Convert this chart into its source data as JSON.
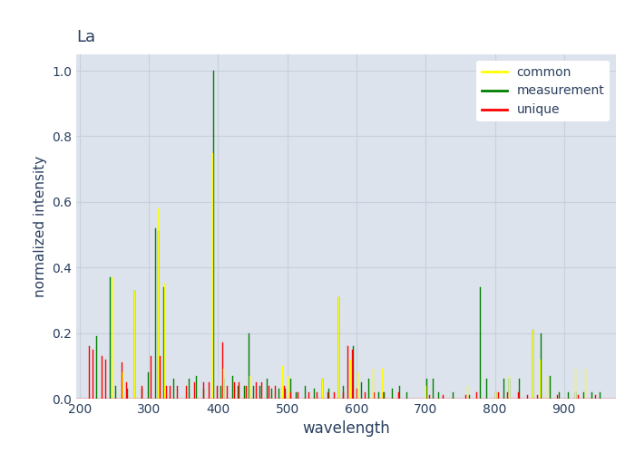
{
  "title": "La",
  "xlabel": "wavelength",
  "ylabel": "normalized intensity",
  "xlim": [
    195,
    975
  ],
  "ylim": [
    0,
    1.05
  ],
  "plot_bg_color": "#dce3ed",
  "fig_color": "#ffffff",
  "legend_bg": "#ffffff",
  "common_color": "yellow",
  "measurement_color": "green",
  "unique_color": "red",
  "text_color": "#2a3f5f",
  "grid_color": "#c8d0dc",
  "common": [
    [
      247,
      0.37
    ],
    [
      262,
      0.08
    ],
    [
      279,
      0.33
    ],
    [
      313,
      0.58
    ],
    [
      322,
      0.35
    ],
    [
      392,
      0.75
    ],
    [
      407,
      0.09
    ],
    [
      445,
      0.07
    ],
    [
      492,
      0.1
    ],
    [
      500,
      0.07
    ],
    [
      550,
      0.06
    ],
    [
      574,
      0.31
    ],
    [
      591,
      0.12
    ],
    [
      602,
      0.08
    ],
    [
      624,
      0.09
    ],
    [
      637,
      0.09
    ],
    [
      700,
      0.04
    ],
    [
      760,
      0.04
    ],
    [
      800,
      0.02
    ],
    [
      820,
      0.07
    ],
    [
      855,
      0.21
    ],
    [
      865,
      0.12
    ],
    [
      876,
      0.07
    ],
    [
      916,
      0.09
    ],
    [
      930,
      0.09
    ]
  ],
  "measurement": [
    [
      224,
      0.19
    ],
    [
      244,
      0.37
    ],
    [
      252,
      0.04
    ],
    [
      268,
      0.03
    ],
    [
      279,
      0.33
    ],
    [
      289,
      0.03
    ],
    [
      299,
      0.08
    ],
    [
      309,
      0.52
    ],
    [
      313,
      0.51
    ],
    [
      321,
      0.34
    ],
    [
      335,
      0.06
    ],
    [
      358,
      0.06
    ],
    [
      368,
      0.07
    ],
    [
      378,
      0.03
    ],
    [
      393,
      1.0
    ],
    [
      404,
      0.04
    ],
    [
      408,
      0.06
    ],
    [
      420,
      0.07
    ],
    [
      428,
      0.04
    ],
    [
      437,
      0.04
    ],
    [
      444,
      0.2
    ],
    [
      450,
      0.04
    ],
    [
      460,
      0.04
    ],
    [
      470,
      0.06
    ],
    [
      477,
      0.03
    ],
    [
      487,
      0.03
    ],
    [
      497,
      0.03
    ],
    [
      504,
      0.06
    ],
    [
      512,
      0.02
    ],
    [
      525,
      0.04
    ],
    [
      538,
      0.03
    ],
    [
      550,
      0.06
    ],
    [
      560,
      0.03
    ],
    [
      574,
      0.31
    ],
    [
      581,
      0.04
    ],
    [
      595,
      0.16
    ],
    [
      606,
      0.05
    ],
    [
      617,
      0.06
    ],
    [
      631,
      0.02
    ],
    [
      640,
      0.02
    ],
    [
      651,
      0.03
    ],
    [
      662,
      0.04
    ],
    [
      672,
      0.02
    ],
    [
      701,
      0.06
    ],
    [
      710,
      0.06
    ],
    [
      718,
      0.02
    ],
    [
      739,
      0.02
    ],
    [
      763,
      0.01
    ],
    [
      778,
      0.34
    ],
    [
      788,
      0.06
    ],
    [
      800,
      0.02
    ],
    [
      812,
      0.06
    ],
    [
      820,
      0.06
    ],
    [
      835,
      0.06
    ],
    [
      855,
      0.21
    ],
    [
      866,
      0.2
    ],
    [
      879,
      0.07
    ],
    [
      892,
      0.02
    ],
    [
      906,
      0.02
    ],
    [
      916,
      0.02
    ],
    [
      928,
      0.02
    ],
    [
      940,
      0.02
    ],
    [
      952,
      0.02
    ]
  ],
  "unique": [
    [
      213,
      0.16
    ],
    [
      218,
      0.15
    ],
    [
      232,
      0.13
    ],
    [
      237,
      0.12
    ],
    [
      260,
      0.11
    ],
    [
      267,
      0.05
    ],
    [
      290,
      0.04
    ],
    [
      303,
      0.13
    ],
    [
      315,
      0.13
    ],
    [
      325,
      0.04
    ],
    [
      330,
      0.04
    ],
    [
      340,
      0.04
    ],
    [
      354,
      0.04
    ],
    [
      366,
      0.05
    ],
    [
      378,
      0.05
    ],
    [
      386,
      0.05
    ],
    [
      398,
      0.04
    ],
    [
      406,
      0.17
    ],
    [
      412,
      0.04
    ],
    [
      423,
      0.05
    ],
    [
      430,
      0.05
    ],
    [
      440,
      0.04
    ],
    [
      455,
      0.05
    ],
    [
      463,
      0.05
    ],
    [
      473,
      0.04
    ],
    [
      482,
      0.04
    ],
    [
      495,
      0.04
    ],
    [
      505,
      0.02
    ],
    [
      515,
      0.02
    ],
    [
      530,
      0.02
    ],
    [
      543,
      0.02
    ],
    [
      558,
      0.02
    ],
    [
      567,
      0.02
    ],
    [
      580,
      0.02
    ],
    [
      587,
      0.16
    ],
    [
      593,
      0.15
    ],
    [
      600,
      0.03
    ],
    [
      612,
      0.02
    ],
    [
      625,
      0.02
    ],
    [
      638,
      0.02
    ],
    [
      660,
      0.02
    ],
    [
      705,
      0.01
    ],
    [
      725,
      0.01
    ],
    [
      757,
      0.01
    ],
    [
      773,
      0.02
    ],
    [
      805,
      0.02
    ],
    [
      818,
      0.02
    ],
    [
      833,
      0.02
    ],
    [
      847,
      0.01
    ],
    [
      861,
      0.01
    ],
    [
      890,
      0.01
    ],
    [
      920,
      0.01
    ],
    [
      945,
      0.01
    ]
  ]
}
